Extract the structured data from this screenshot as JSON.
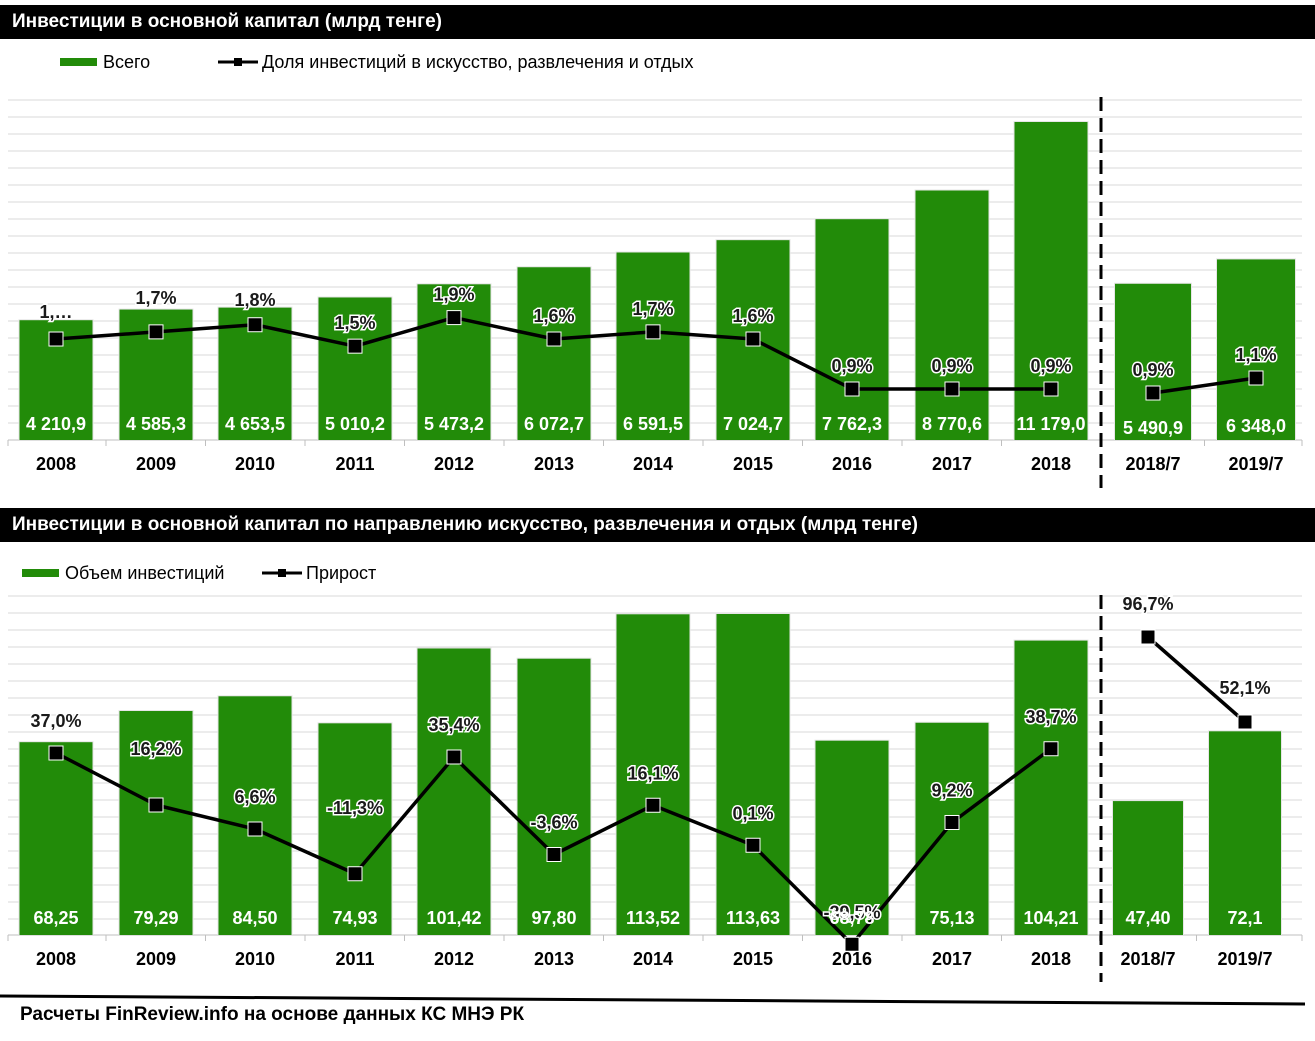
{
  "footer": "Расчеты FinReview.info  на основе данных КС МНЭ РК",
  "colors": {
    "bar": "#228B09",
    "line": "#000000",
    "grid": "#d9d9d9",
    "header_bg": "#000000"
  },
  "chart_data": [
    {
      "type": "bar",
      "title": "Инвестиции в основной капитал (млрд тенге)",
      "categories": [
        "2008",
        "2009",
        "2010",
        "2011",
        "2012",
        "2013",
        "2014",
        "2015",
        "2016",
        "2017",
        "2018",
        "2018/7",
        "2019/7"
      ],
      "series": [
        {
          "name": "Всего",
          "type": "bar",
          "values": [
            4210.9,
            4585.3,
            4653.5,
            5010.2,
            5473.2,
            6072.7,
            6591.5,
            7024.7,
            7762.3,
            8770.6,
            11179.0,
            5490.9,
            6348.0
          ],
          "labels": [
            "4 210,9",
            "4 585,3",
            "4 653,5",
            "5 010,2",
            "5 473,2",
            "6 072,7",
            "6 591,5",
            "7 024,7",
            "7 762,3",
            "8 770,6",
            "11 179,0",
            "5 490,9",
            "6 348,0"
          ]
        },
        {
          "name": "Доля инвестиций в искусство, развлечения и отдых",
          "type": "line",
          "unit": "%",
          "values": [
            1.6,
            1.7,
            1.8,
            1.5,
            1.9,
            1.6,
            1.7,
            1.6,
            0.9,
            0.9,
            0.9,
            0.9,
            1.1
          ],
          "labels": [
            "1,…",
            "1,7%",
            "1,8%",
            "1,5%",
            "1,9%",
            "1,6%",
            "1,7%",
            "1,6%",
            "0,9%",
            "0,9%",
            "0,9%",
            "0,9%",
            "1,1%"
          ]
        }
      ],
      "legend_position": "top-left",
      "grid": true,
      "separator_after": "2018"
    },
    {
      "type": "bar",
      "title": "Инвестиции в основной капитал по направлению искусство, развлечения и отдых (млрд тенге)",
      "categories": [
        "2008",
        "2009",
        "2010",
        "2011",
        "2012",
        "2013",
        "2014",
        "2015",
        "2016",
        "2017",
        "2018",
        "2018/7",
        "2019/7"
      ],
      "series": [
        {
          "name": "Объем инвестиций",
          "type": "bar",
          "values": [
            68.25,
            79.29,
            84.5,
            74.93,
            101.42,
            97.8,
            113.52,
            113.63,
            68.78,
            75.13,
            104.21,
            47.4,
            72.1
          ],
          "labels": [
            "68,25",
            "79,29",
            "84,50",
            "74,93",
            "101,42",
            "97,80",
            "113,52",
            "113,63",
            "68,78",
            "75,13",
            "104,21",
            "47,40",
            "72,1"
          ]
        },
        {
          "name": "Прирост",
          "type": "line",
          "unit": "%",
          "values": [
            37.0,
            16.2,
            6.6,
            -11.3,
            35.4,
            -3.6,
            16.1,
            0.1,
            -39.5,
            9.2,
            38.7,
            96.7,
            52.1
          ],
          "labels": [
            "37,0%",
            "16,2%",
            "6,6%",
            "-11,3%",
            "35,4%",
            "-3,6%",
            "16,1%",
            "0,1%",
            "-39,5%",
            "9,2%",
            "38,7%",
            "96,7%",
            "52,1%"
          ]
        }
      ],
      "legend_position": "top-left",
      "grid": true,
      "separator_after": "2018"
    }
  ]
}
